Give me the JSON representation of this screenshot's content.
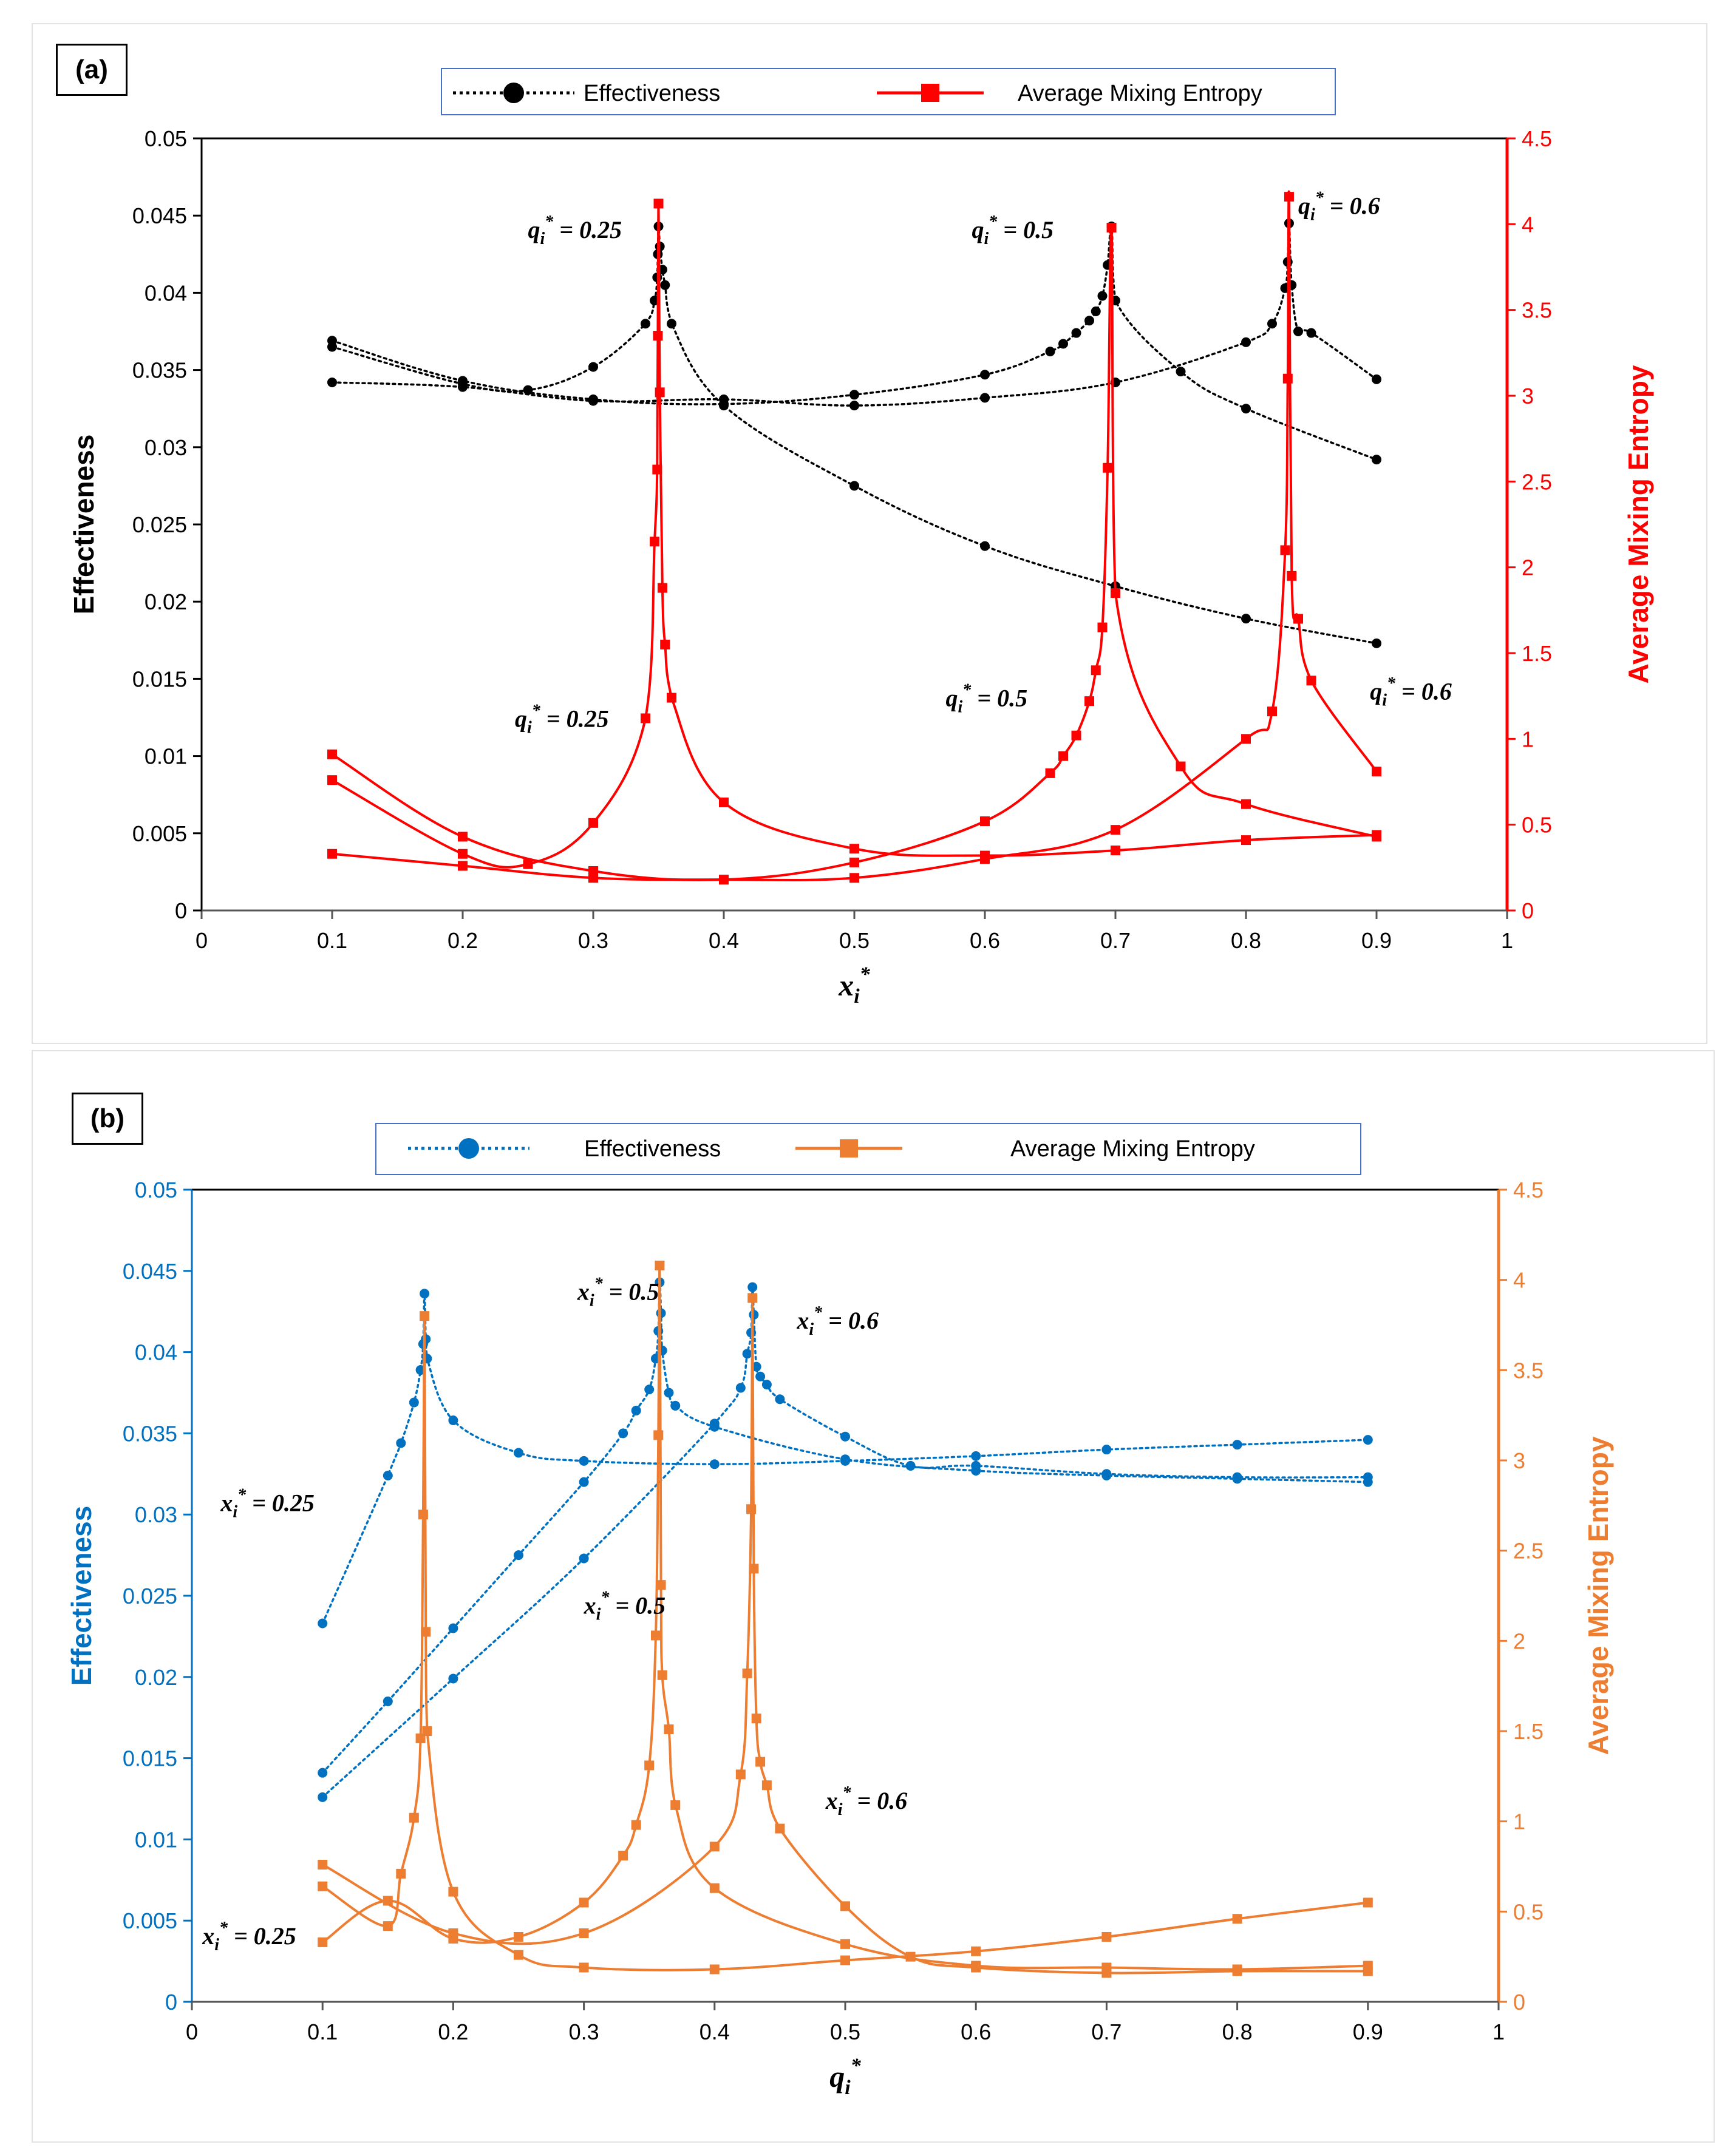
{
  "chart_data": [
    {
      "id": "a",
      "panel_label": "(a)",
      "type": "line",
      "xlabel": "x",
      "xlabel_sub": "i",
      "xlabel_sup": "*",
      "ylabel": "Effectiveness",
      "y2label": "Average Mixing Entropy",
      "xlim": [
        0,
        1
      ],
      "ylim": [
        0,
        0.05
      ],
      "y2lim": [
        0,
        4.5
      ],
      "x_ticks": [
        "0",
        "0.1",
        "0.2",
        "0.3",
        "0.4",
        "0.5",
        "0.6",
        "0.7",
        "0.8",
        "0.9",
        "1"
      ],
      "y_ticks": [
        "0",
        "0.005",
        "0.01",
        "0.015",
        "0.02",
        "0.025",
        "0.03",
        "0.035",
        "0.04",
        "0.045",
        "0.05"
      ],
      "y2_ticks": [
        "0",
        "0.5",
        "1",
        "1.5",
        "2",
        "2.5",
        "3",
        "3.5",
        "4",
        "4.5"
      ],
      "colors": {
        "left_axis": "#000000",
        "right_axis": "#ff0000",
        "tick_left": "#000000",
        "effectiveness": "#000000",
        "entropy": "#ff0000"
      },
      "legend": {
        "effectiveness": "Effectiveness",
        "entropy": "Average Mixing Entropy"
      },
      "effectiveness_series": [
        {
          "name": "q* = 0.25",
          "x": [
            0.1,
            0.2,
            0.25,
            0.3,
            0.34,
            0.347,
            0.349,
            0.3495,
            0.35,
            0.351,
            0.353,
            0.355,
            0.36,
            0.4,
            0.5,
            0.6,
            0.7,
            0.8,
            0.9
          ],
          "y": [
            0.0365,
            0.0341,
            0.0337,
            0.0352,
            0.038,
            0.0395,
            0.041,
            0.0425,
            0.0443,
            0.043,
            0.0415,
            0.0405,
            0.038,
            0.0327,
            0.0275,
            0.0236,
            0.021,
            0.0189,
            0.0173
          ]
        },
        {
          "name": "q* = 0.5",
          "x": [
            0.1,
            0.2,
            0.3,
            0.4,
            0.5,
            0.6,
            0.65,
            0.66,
            0.67,
            0.68,
            0.685,
            0.69,
            0.694,
            0.697,
            0.7,
            0.75,
            0.8,
            0.9
          ],
          "y": [
            0.0369,
            0.0343,
            0.0331,
            0.0328,
            0.0334,
            0.0347,
            0.0362,
            0.0367,
            0.0374,
            0.0382,
            0.0388,
            0.0398,
            0.0418,
            0.0443,
            0.0395,
            0.0349,
            0.0325,
            0.0292
          ]
        },
        {
          "name": "q* = 0.6",
          "x": [
            0.1,
            0.2,
            0.3,
            0.4,
            0.5,
            0.6,
            0.7,
            0.8,
            0.82,
            0.83,
            0.832,
            0.833,
            0.835,
            0.84,
            0.85,
            0.9
          ],
          "y": [
            0.0342,
            0.0339,
            0.033,
            0.0331,
            0.0327,
            0.0332,
            0.0342,
            0.0368,
            0.038,
            0.0403,
            0.042,
            0.0445,
            0.0405,
            0.0375,
            0.0374,
            0.0344
          ]
        }
      ],
      "entropy_series": [
        {
          "name": "q* = 0.25",
          "x": [
            0.1,
            0.2,
            0.25,
            0.3,
            0.34,
            0.347,
            0.349,
            0.3495,
            0.35,
            0.351,
            0.353,
            0.355,
            0.36,
            0.4,
            0.5,
            0.6,
            0.7,
            0.8,
            0.9
          ],
          "y": [
            0.76,
            0.33,
            0.27,
            0.51,
            1.12,
            2.15,
            2.57,
            3.35,
            4.12,
            3.02,
            1.88,
            1.55,
            1.24,
            0.63,
            0.36,
            0.32,
            0.35,
            0.41,
            0.44
          ]
        },
        {
          "name": "q* = 0.5",
          "x": [
            0.1,
            0.2,
            0.3,
            0.4,
            0.5,
            0.6,
            0.65,
            0.66,
            0.67,
            0.68,
            0.685,
            0.69,
            0.694,
            0.697,
            0.7,
            0.75,
            0.8,
            0.9
          ],
          "y": [
            0.91,
            0.43,
            0.23,
            0.18,
            0.28,
            0.52,
            0.8,
            0.9,
            1.02,
            1.22,
            1.4,
            1.65,
            2.58,
            3.98,
            1.85,
            0.84,
            0.62,
            0.43
          ]
        },
        {
          "name": "q* = 0.6",
          "x": [
            0.1,
            0.2,
            0.3,
            0.4,
            0.5,
            0.6,
            0.7,
            0.8,
            0.82,
            0.83,
            0.832,
            0.833,
            0.835,
            0.84,
            0.85,
            0.9
          ],
          "y": [
            0.33,
            0.26,
            0.19,
            0.18,
            0.19,
            0.3,
            0.47,
            1.0,
            1.16,
            2.1,
            3.1,
            4.16,
            1.95,
            1.7,
            1.34,
            0.81
          ]
        }
      ],
      "annotations": [
        {
          "text": "q",
          "sub": "i",
          "sup": "*",
          "rest": " = 0.25",
          "x": 0.25,
          "y2": 3.92
        },
        {
          "text": "q",
          "sub": "i",
          "sup": "*",
          "rest": " = 0.5",
          "x": 0.59,
          "y2": 3.92
        },
        {
          "text": "q",
          "sub": "i",
          "sup": "*",
          "rest": " = 0.6",
          "x": 0.84,
          "y2": 4.06
        },
        {
          "text": "q",
          "sub": "i",
          "sup": "*",
          "rest": " = 0.25",
          "x": 0.24,
          "y2": 1.07
        },
        {
          "text": "q",
          "sub": "i",
          "sup": "*",
          "rest": " = 0.5",
          "x": 0.57,
          "y2": 1.19
        },
        {
          "text": "q",
          "sub": "i",
          "sup": "*",
          "rest": " = 0.6",
          "x": 0.895,
          "y2": 1.23
        }
      ]
    },
    {
      "id": "b",
      "panel_label": "(b)",
      "type": "line",
      "xlabel": "q",
      "xlabel_sub": "i",
      "xlabel_sup": "*",
      "ylabel": "Effectiveness",
      "y2label": "Average Mixing Entropy",
      "xlim": [
        0,
        1
      ],
      "ylim": [
        0,
        0.05
      ],
      "y2lim": [
        0,
        4.5
      ],
      "x_ticks": [
        "0",
        "0.1",
        "0.2",
        "0.3",
        "0.4",
        "0.5",
        "0.6",
        "0.7",
        "0.8",
        "0.9",
        "1"
      ],
      "y_ticks": [
        "0",
        "0.005",
        "0.01",
        "0.015",
        "0.02",
        "0.025",
        "0.03",
        "0.035",
        "0.04",
        "0.045",
        "0.05"
      ],
      "y2_ticks": [
        "0",
        "0.5",
        "1",
        "1.5",
        "2",
        "2.5",
        "3",
        "3.5",
        "4",
        "4.5"
      ],
      "colors": {
        "left_axis": "#0070c0",
        "right_axis": "#ed7d31",
        "tick_left": "#0070c0",
        "effectiveness": "#0070c0",
        "entropy": "#ed7d31"
      },
      "legend": {
        "effectiveness": "Effectiveness",
        "entropy": "Average Mixing Entropy"
      },
      "effectiveness_series": [
        {
          "name": "x* = 0.25",
          "x": [
            0.1,
            0.15,
            0.16,
            0.17,
            0.175,
            0.177,
            0.178,
            0.179,
            0.18,
            0.2,
            0.25,
            0.3,
            0.4,
            0.5,
            0.6,
            0.7,
            0.8,
            0.9
          ],
          "y": [
            0.0233,
            0.0324,
            0.0344,
            0.0369,
            0.0389,
            0.0405,
            0.0436,
            0.0408,
            0.0396,
            0.0358,
            0.0338,
            0.0333,
            0.0331,
            0.0333,
            0.0336,
            0.034,
            0.0343,
            0.0346
          ]
        },
        {
          "name": "x* = 0.5",
          "x": [
            0.1,
            0.15,
            0.2,
            0.25,
            0.3,
            0.33,
            0.34,
            0.35,
            0.355,
            0.357,
            0.358,
            0.359,
            0.36,
            0.365,
            0.37,
            0.4,
            0.5,
            0.6,
            0.7,
            0.8,
            0.9
          ],
          "y": [
            0.0141,
            0.0185,
            0.023,
            0.0275,
            0.032,
            0.035,
            0.0364,
            0.0377,
            0.0396,
            0.0413,
            0.0443,
            0.0424,
            0.0401,
            0.0375,
            0.0367,
            0.0354,
            0.0334,
            0.0327,
            0.0324,
            0.0322,
            0.032
          ]
        },
        {
          "name": "x* = 0.6",
          "x": [
            0.1,
            0.2,
            0.3,
            0.4,
            0.42,
            0.425,
            0.428,
            0.429,
            0.43,
            0.432,
            0.435,
            0.44,
            0.45,
            0.5,
            0.55,
            0.6,
            0.7,
            0.8,
            0.9
          ],
          "y": [
            0.0126,
            0.0199,
            0.0273,
            0.0356,
            0.0378,
            0.0399,
            0.0412,
            0.044,
            0.0423,
            0.0391,
            0.0385,
            0.038,
            0.0371,
            0.0348,
            0.033,
            0.033,
            0.0325,
            0.0323,
            0.0323
          ]
        }
      ],
      "entropy_series": [
        {
          "name": "x* = 0.25",
          "x": [
            0.1,
            0.15,
            0.16,
            0.17,
            0.175,
            0.177,
            0.178,
            0.179,
            0.18,
            0.2,
            0.25,
            0.3,
            0.4,
            0.5,
            0.6,
            0.7,
            0.8,
            0.9
          ],
          "y": [
            0.64,
            0.42,
            0.71,
            1.02,
            1.46,
            2.7,
            3.8,
            2.05,
            1.5,
            0.61,
            0.26,
            0.19,
            0.18,
            0.23,
            0.28,
            0.36,
            0.46,
            0.55
          ]
        },
        {
          "name": "x* = 0.5",
          "x": [
            0.1,
            0.15,
            0.2,
            0.25,
            0.3,
            0.33,
            0.34,
            0.35,
            0.355,
            0.357,
            0.358,
            0.359,
            0.36,
            0.365,
            0.37,
            0.4,
            0.5,
            0.6,
            0.7,
            0.8,
            0.9
          ],
          "y": [
            0.33,
            0.56,
            0.35,
            0.36,
            0.55,
            0.81,
            0.98,
            1.31,
            2.03,
            3.14,
            4.08,
            2.31,
            1.81,
            1.51,
            1.09,
            0.63,
            0.32,
            0.2,
            0.19,
            0.18,
            0.2
          ]
        },
        {
          "name": "x* = 0.6",
          "x": [
            0.1,
            0.2,
            0.3,
            0.4,
            0.42,
            0.425,
            0.428,
            0.429,
            0.43,
            0.432,
            0.435,
            0.44,
            0.45,
            0.5,
            0.55,
            0.6,
            0.7,
            0.8,
            0.9
          ],
          "y": [
            0.76,
            0.38,
            0.38,
            0.86,
            1.26,
            1.82,
            2.73,
            3.9,
            2.4,
            1.57,
            1.33,
            1.2,
            0.96,
            0.53,
            0.25,
            0.19,
            0.16,
            0.17,
            0.17
          ]
        }
      ],
      "annotations": [
        {
          "text": "x",
          "sub": "i",
          "sup": "*",
          "rest": " = 0.25",
          "x": 0.022,
          "y2": 2.72
        },
        {
          "text": "x",
          "sub": "i",
          "sup": "*",
          "rest": " = 0.5",
          "x": 0.295,
          "y2": 3.89
        },
        {
          "text": "x",
          "sub": "i",
          "sup": "*",
          "rest": " = 0.6",
          "x": 0.463,
          "y2": 3.73
        },
        {
          "text": "x",
          "sub": "i",
          "sup": "*",
          "rest": " = 0.5",
          "x": 0.3,
          "y2": 2.15
        },
        {
          "text": "x",
          "sub": "i",
          "sup": "*",
          "rest": " = 0.6",
          "x": 0.485,
          "y2": 1.07
        },
        {
          "text": "x",
          "sub": "i",
          "sup": "*",
          "rest": " = 0.25",
          "x": 0.008,
          "y2": 0.32
        }
      ]
    }
  ]
}
